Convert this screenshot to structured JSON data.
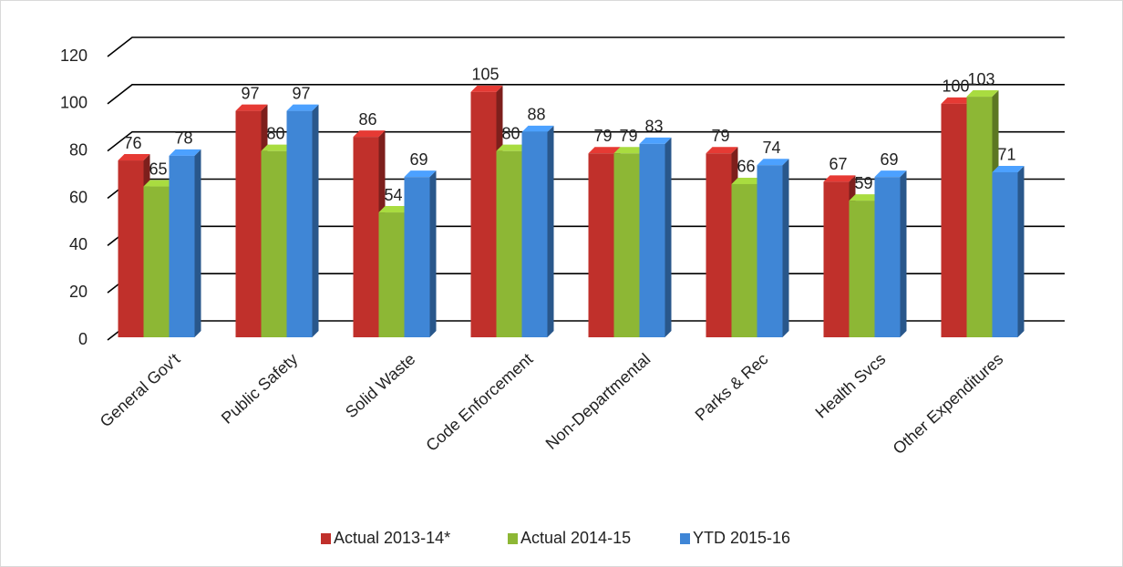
{
  "chart_data": {
    "type": "bar",
    "categories": [
      "General Gov't",
      "Public Safety",
      "Solid Waste",
      "Code Enforcement",
      "Non-Departmental",
      "Parks & Rec",
      "Health Svcs",
      "Other Expenditures"
    ],
    "series": [
      {
        "name": "Actual 2013-14*",
        "color": "#c0302b",
        "values": [
          76,
          97,
          86,
          105,
          79,
          79,
          67,
          100
        ]
      },
      {
        "name": "Actual 2014-15",
        "color": "#8db735",
        "values": [
          65,
          80,
          54,
          80,
          79,
          66,
          59,
          103
        ]
      },
      {
        "name": "YTD 2015-16",
        "color": "#3f86d6",
        "values": [
          78,
          97,
          69,
          88,
          83,
          74,
          69,
          71
        ]
      }
    ],
    "ylim": [
      0,
      120
    ],
    "yticks": [
      0,
      20,
      40,
      60,
      80,
      100,
      120
    ],
    "grid": true,
    "legend": "bottom"
  }
}
